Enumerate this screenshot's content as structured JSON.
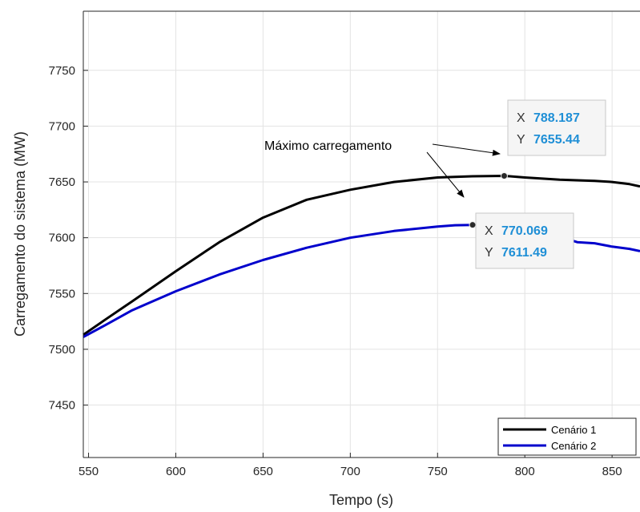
{
  "chart_data": {
    "type": "line",
    "xlabel": "Tempo (s)",
    "ylabel": "Carregamento do sistema (MW)",
    "xlim": [
      547,
      866
    ],
    "ylim": [
      7403,
      7803
    ],
    "xticks": [
      550,
      600,
      650,
      700,
      750,
      800,
      850
    ],
    "yticks": [
      7450,
      7500,
      7550,
      7600,
      7650,
      7700,
      7750
    ],
    "grid": true,
    "legend_position": "bottom-right",
    "series": [
      {
        "name": "Cenário 1",
        "color": "#000000",
        "x": [
          547,
          560,
          575,
          600,
          625,
          650,
          675,
          700,
          725,
          750,
          770,
          788.187,
          800,
          810,
          820,
          830,
          840,
          850,
          860,
          866
        ],
        "y": [
          7513,
          7527,
          7543,
          7570,
          7596,
          7618,
          7634,
          7643,
          7650,
          7654,
          7655.1,
          7655.44,
          7654,
          7653,
          7652,
          7651.5,
          7651,
          7650,
          7648,
          7646
        ]
      },
      {
        "name": "Cenário 2",
        "color": "#0000cc",
        "x": [
          547,
          560,
          575,
          600,
          625,
          650,
          675,
          700,
          725,
          750,
          760,
          770.069,
          780,
          790,
          800,
          810,
          820,
          830,
          840,
          850,
          860,
          866
        ],
        "y": [
          7511,
          7522,
          7535,
          7552,
          7567,
          7580,
          7591,
          7600,
          7606,
          7610,
          7611.2,
          7611.49,
          7611,
          7610,
          7608,
          7605,
          7601,
          7596,
          7595,
          7592,
          7590,
          7588
        ]
      }
    ],
    "annotation": "Máximo carregamento",
    "datatips": [
      {
        "series": "Cenário 1",
        "x_label": "X",
        "x_value": "788.187",
        "y_label": "Y",
        "y_value": "7655.44",
        "x": 788.187,
        "y": 7655.44
      },
      {
        "series": "Cenário 2",
        "x_label": "X",
        "x_value": "770.069",
        "y_label": "Y",
        "y_value": "7611.49",
        "x": 770.069,
        "y": 7611.49
      }
    ]
  }
}
